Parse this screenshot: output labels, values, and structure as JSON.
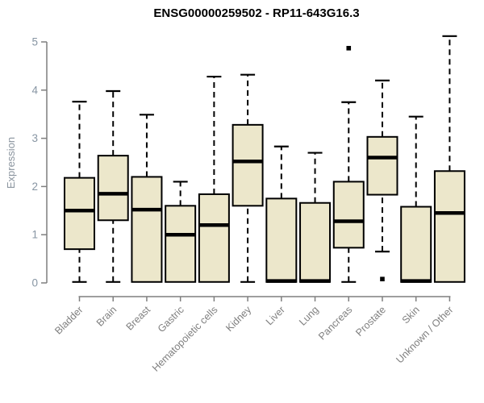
{
  "title": "ENSG00000259502 - RP11-643G16.3",
  "colors": {
    "box_fill": "#ECE7CB",
    "box_stroke": "#000000",
    "median": "#000000",
    "whisker": "#000000",
    "outlier": "#000000",
    "axis_line": "#7F7F7F",
    "y_tick_label": "#8795A3",
    "x_tick_label": "#7F7F7F",
    "y_axis_label": "#8A949E",
    "title_color": "#000000",
    "background": "#FFFFFF"
  },
  "chart_data": {
    "type": "boxplot",
    "title": "ENSG00000259502 - RP11-643G16.3",
    "xlabel": "",
    "ylabel": "Expression",
    "ylim": [
      0,
      5
    ],
    "yticks": [
      0,
      1,
      2,
      3,
      4,
      5
    ],
    "grid": false,
    "legend": "none",
    "categories": [
      "Bladder",
      "Brain",
      "Breast",
      "Gastric",
      "Hematopoietic cells",
      "Kidney",
      "Liver",
      "Lung",
      "Pancreas",
      "Prostate",
      "Skin",
      "Unknown / Other"
    ],
    "boxes": [
      {
        "category": "Bladder",
        "whisker_low": 0.02,
        "q1": 0.7,
        "median": 1.5,
        "q3": 2.18,
        "whisker_high": 3.76,
        "outliers": []
      },
      {
        "category": "Brain",
        "whisker_low": 0.02,
        "q1": 1.3,
        "median": 1.85,
        "q3": 2.64,
        "whisker_high": 3.98,
        "outliers": []
      },
      {
        "category": "Breast",
        "whisker_low": 0.02,
        "q1": 0.02,
        "median": 1.52,
        "q3": 2.2,
        "whisker_high": 3.49,
        "outliers": []
      },
      {
        "category": "Gastric",
        "whisker_low": 0.02,
        "q1": 0.02,
        "median": 1.0,
        "q3": 1.6,
        "whisker_high": 2.1,
        "outliers": []
      },
      {
        "category": "Hematopoietic cells",
        "whisker_low": 0.02,
        "q1": 0.02,
        "median": 1.2,
        "q3": 1.84,
        "whisker_high": 4.28,
        "outliers": []
      },
      {
        "category": "Kidney",
        "whisker_low": 0.02,
        "q1": 1.6,
        "median": 2.52,
        "q3": 3.28,
        "whisker_high": 4.32,
        "outliers": []
      },
      {
        "category": "Liver",
        "whisker_low": 0.02,
        "q1": 0.02,
        "median": 0.04,
        "q3": 1.75,
        "whisker_high": 2.83,
        "outliers": []
      },
      {
        "category": "Lung",
        "whisker_low": 0.02,
        "q1": 0.02,
        "median": 0.04,
        "q3": 1.66,
        "whisker_high": 2.7,
        "outliers": []
      },
      {
        "category": "Pancreas",
        "whisker_low": 0.02,
        "q1": 0.73,
        "median": 1.28,
        "q3": 2.1,
        "whisker_high": 3.75,
        "outliers": [
          4.87
        ]
      },
      {
        "category": "Prostate",
        "whisker_low": 0.65,
        "q1": 1.83,
        "median": 2.6,
        "q3": 3.03,
        "whisker_high": 4.2,
        "outliers": [
          0.08
        ]
      },
      {
        "category": "Skin",
        "whisker_low": 0.02,
        "q1": 0.02,
        "median": 0.04,
        "q3": 1.58,
        "whisker_high": 3.45,
        "outliers": []
      },
      {
        "category": "Unknown / Other",
        "whisker_low": 0.02,
        "q1": 0.02,
        "median": 1.45,
        "q3": 2.32,
        "whisker_high": 5.12,
        "outliers": []
      }
    ]
  }
}
